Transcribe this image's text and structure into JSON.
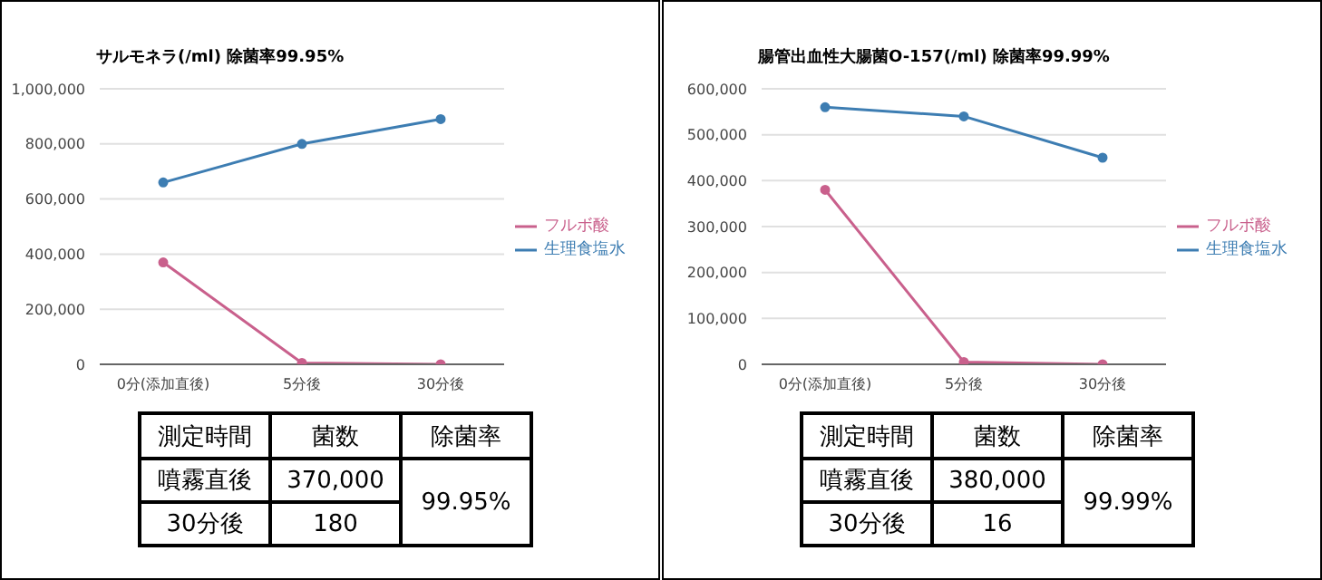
{
  "chart_data": [
    {
      "type": "line",
      "title": "サルモネラ(/ml) 除菌率99.95%",
      "categories": [
        "0分(添加直後)",
        "5分後",
        "30分後"
      ],
      "series": [
        {
          "name": "フルボ酸",
          "color": "#c9608c",
          "values": [
            370000,
            5000,
            0
          ]
        },
        {
          "name": "生理食塩水",
          "color": "#3d7db2",
          "values": [
            660000,
            800000,
            890000
          ]
        }
      ],
      "ylim": [
        0,
        1000000
      ],
      "yticks": [
        0,
        {
          "value": 200000,
          "label": "200,000"
        },
        {
          "value": 400000,
          "label": "400,000"
        },
        {
          "value": 600000,
          "label": "600,000"
        },
        {
          "value": 800000,
          "label": "800,000"
        },
        {
          "value": 1000000,
          "label": "1,000,000"
        }
      ],
      "grid": "y",
      "legend": "right",
      "marker": "circle",
      "annotations": [
        "測定時間",
        "菌数",
        "除菌率",
        "噴霧直後",
        "370,000",
        "99.95%",
        "30分後",
        "180"
      ]
    },
    {
      "type": "line",
      "title": "腸管出血性大腸菌O-157(/ml) 除菌率99.99%",
      "categories": [
        "0分(添加直後)",
        "5分後",
        "30分後"
      ],
      "series": [
        {
          "name": "フルボ酸",
          "color": "#c9608c",
          "values": [
            380000,
            5000,
            0
          ]
        },
        {
          "name": "生理食塩水",
          "color": "#3d7db2",
          "values": [
            560000,
            540000,
            450000
          ]
        }
      ],
      "ylim": [
        0,
        600000
      ],
      "yticks": [
        0,
        {
          "value": 100000,
          "label": "100,000"
        },
        {
          "value": 200000,
          "label": "200,000"
        },
        {
          "value": 300000,
          "label": "300,000"
        },
        {
          "value": 400000,
          "label": "400,000"
        },
        {
          "value": 500000,
          "label": "500,000"
        },
        {
          "value": 600000,
          "label": "600,000"
        }
      ],
      "grid": "y",
      "legend": "right",
      "marker": "circle",
      "annotations": [
        "測定時間",
        "菌数",
        "除菌率",
        "噴霧直後",
        "380,000",
        "99.99%",
        "30分後",
        "16"
      ]
    }
  ]
}
